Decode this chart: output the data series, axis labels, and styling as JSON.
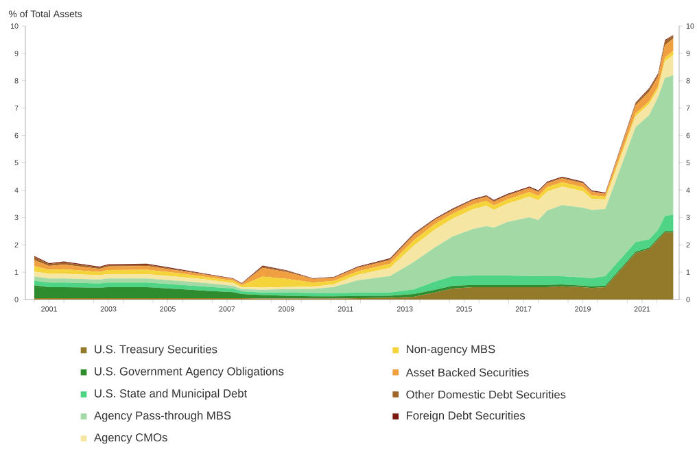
{
  "chart_data": {
    "type": "area",
    "stacked": true,
    "ylabel": "% of Total Assets",
    "legend": "bottom",
    "x": [
      2001.0,
      2001.5,
      2002.0,
      2003.2,
      2003.5,
      2004.8,
      2005.9,
      2006.8,
      2007.7,
      2008.0,
      2008.7,
      2009.5,
      2010.4,
      2011.1,
      2011.9,
      2013.0,
      2013.8,
      2014.5,
      2015.1,
      2015.8,
      2016.25,
      2016.5,
      2016.95,
      2017.7,
      2018.0,
      2018.3,
      2018.8,
      2019.5,
      2019.8,
      2020.26,
      2021.28,
      2021.74,
      2022.04,
      2022.27,
      2022.55
    ],
    "series": [
      {
        "name": "U.S. Treasury Securities",
        "color": "#93792a",
        "values": [
          0.05,
          0.05,
          0.05,
          0.05,
          0.05,
          0.05,
          0.05,
          0.05,
          0.05,
          0.05,
          0.04,
          0.04,
          0.04,
          0.04,
          0.05,
          0.06,
          0.1,
          0.25,
          0.4,
          0.45,
          0.45,
          0.45,
          0.45,
          0.45,
          0.45,
          0.45,
          0.48,
          0.45,
          0.42,
          0.45,
          1.7,
          1.85,
          2.2,
          2.45,
          2.45
        ]
      },
      {
        "name": "U.S. Government Agency Obligations",
        "color": "#2e8b2e",
        "values": [
          0.47,
          0.4,
          0.4,
          0.38,
          0.4,
          0.4,
          0.33,
          0.27,
          0.22,
          0.15,
          0.12,
          0.1,
          0.08,
          0.08,
          0.08,
          0.08,
          0.1,
          0.1,
          0.1,
          0.08,
          0.08,
          0.08,
          0.08,
          0.08,
          0.08,
          0.08,
          0.07,
          0.06,
          0.06,
          0.06,
          0.05,
          0.05,
          0.05,
          0.05,
          0.05
        ]
      },
      {
        "name": "U.S. State and Municipal Debt",
        "color": "#4fd486",
        "values": [
          0.17,
          0.17,
          0.17,
          0.16,
          0.17,
          0.17,
          0.16,
          0.15,
          0.13,
          0.1,
          0.1,
          0.12,
          0.12,
          0.12,
          0.12,
          0.12,
          0.17,
          0.3,
          0.35,
          0.35,
          0.35,
          0.35,
          0.35,
          0.33,
          0.33,
          0.32,
          0.3,
          0.3,
          0.3,
          0.35,
          0.35,
          0.3,
          0.3,
          0.55,
          0.6
        ]
      },
      {
        "name": "Agency Pass-through MBS",
        "color": "#a3d9a5",
        "values": [
          0.15,
          0.15,
          0.15,
          0.14,
          0.15,
          0.15,
          0.14,
          0.13,
          0.1,
          0.08,
          0.1,
          0.12,
          0.15,
          0.22,
          0.45,
          0.6,
          1.0,
          1.25,
          1.45,
          1.7,
          1.8,
          1.75,
          1.95,
          2.15,
          2.05,
          2.4,
          2.6,
          2.55,
          2.5,
          2.45,
          4.2,
          4.55,
          4.85,
          5.05,
          5.1
        ]
      },
      {
        "name": "Agency CMOs",
        "color": "#f5e6a3",
        "values": [
          0.18,
          0.17,
          0.17,
          0.16,
          0.16,
          0.16,
          0.15,
          0.13,
          0.11,
          0.07,
          0.08,
          0.08,
          0.08,
          0.1,
          0.2,
          0.3,
          0.6,
          0.65,
          0.65,
          0.72,
          0.75,
          0.65,
          0.67,
          0.75,
          0.72,
          0.7,
          0.68,
          0.6,
          0.4,
          0.35,
          0.4,
          0.4,
          0.3,
          0.6,
          0.75
        ]
      },
      {
        "name": "Non-agency MBS",
        "color": "#f5d33a",
        "values": [
          0.2,
          0.15,
          0.17,
          0.12,
          0.15,
          0.16,
          0.13,
          0.1,
          0.08,
          0.07,
          0.4,
          0.3,
          0.15,
          0.12,
          0.13,
          0.15,
          0.2,
          0.2,
          0.18,
          0.18,
          0.18,
          0.16,
          0.16,
          0.17,
          0.16,
          0.16,
          0.16,
          0.15,
          0.13,
          0.1,
          0.1,
          0.1,
          0.1,
          0.15,
          0.15
        ]
      },
      {
        "name": "Asset Backed Securities",
        "color": "#f0a040",
        "values": [
          0.22,
          0.14,
          0.17,
          0.11,
          0.13,
          0.14,
          0.09,
          0.07,
          0.06,
          0.05,
          0.32,
          0.25,
          0.13,
          0.11,
          0.12,
          0.13,
          0.18,
          0.15,
          0.13,
          0.14,
          0.14,
          0.14,
          0.14,
          0.14,
          0.14,
          0.14,
          0.14,
          0.14,
          0.13,
          0.1,
          0.3,
          0.35,
          0.35,
          0.45,
          0.45
        ]
      },
      {
        "name": "Other Domestic Debt Securities",
        "color": "#a0642a",
        "values": [
          0.12,
          0.07,
          0.08,
          0.05,
          0.05,
          0.05,
          0.03,
          0.02,
          0.01,
          0.01,
          0.05,
          0.04,
          0.01,
          0.02,
          0.03,
          0.04,
          0.04,
          0.03,
          0.03,
          0.03,
          0.03,
          0.03,
          0.03,
          0.03,
          0.03,
          0.03,
          0.03,
          0.03,
          0.02,
          0.02,
          0.07,
          0.1,
          0.09,
          0.16,
          0.09
        ]
      },
      {
        "name": "Foreign Debt Securities",
        "color": "#7a1a10",
        "values": [
          0.03,
          0.03,
          0.03,
          0.03,
          0.03,
          0.03,
          0.03,
          0.02,
          0.02,
          0.02,
          0.03,
          0.02,
          0.02,
          0.02,
          0.02,
          0.03,
          0.03,
          0.03,
          0.03,
          0.03,
          0.03,
          0.03,
          0.03,
          0.03,
          0.03,
          0.03,
          0.03,
          0.03,
          0.03,
          0.03,
          0.03,
          0.03,
          0.03,
          0.03,
          0.03
        ]
      }
    ],
    "xlim": [
      2000.7,
      2022.75
    ],
    "xticks": [
      {
        "value": 2001,
        "label": null
      },
      {
        "value": 2001.5,
        "label": "2001"
      },
      {
        "value": 2002,
        "label": null
      },
      {
        "value": 2003,
        "label": null
      },
      {
        "value": 2003.5,
        "label": "2003"
      },
      {
        "value": 2004,
        "label": null
      },
      {
        "value": 2005,
        "label": null
      },
      {
        "value": 2005.5,
        "label": "2005"
      },
      {
        "value": 2006,
        "label": null
      },
      {
        "value": 2007,
        "label": null
      },
      {
        "value": 2007.5,
        "label": "2007"
      },
      {
        "value": 2008,
        "label": null
      },
      {
        "value": 2009,
        "label": null
      },
      {
        "value": 2009.5,
        "label": "2009"
      },
      {
        "value": 2010,
        "label": null
      },
      {
        "value": 2011,
        "label": null
      },
      {
        "value": 2011.5,
        "label": "2011"
      },
      {
        "value": 2012,
        "label": null
      },
      {
        "value": 2013,
        "label": null
      },
      {
        "value": 2013.5,
        "label": "2013"
      },
      {
        "value": 2014,
        "label": null
      },
      {
        "value": 2015,
        "label": null
      },
      {
        "value": 2015.5,
        "label": "2015"
      },
      {
        "value": 2016,
        "label": null
      },
      {
        "value": 2017,
        "label": null
      },
      {
        "value": 2017.5,
        "label": "2017"
      },
      {
        "value": 2018,
        "label": null
      },
      {
        "value": 2019,
        "label": null
      },
      {
        "value": 2019.5,
        "label": "2019"
      },
      {
        "value": 2020,
        "label": null
      },
      {
        "value": 2021,
        "label": null
      },
      {
        "value": 2021.5,
        "label": "2021"
      },
      {
        "value": 2022,
        "label": null
      }
    ],
    "ylim": [
      0,
      10
    ],
    "yticks": [
      0,
      1,
      2,
      3,
      4,
      5,
      6,
      7,
      8,
      9,
      10
    ],
    "y2lim": [
      0,
      10
    ],
    "y2ticks": [
      0,
      1,
      2,
      3,
      4,
      5,
      6,
      7,
      8,
      9,
      10
    ]
  }
}
